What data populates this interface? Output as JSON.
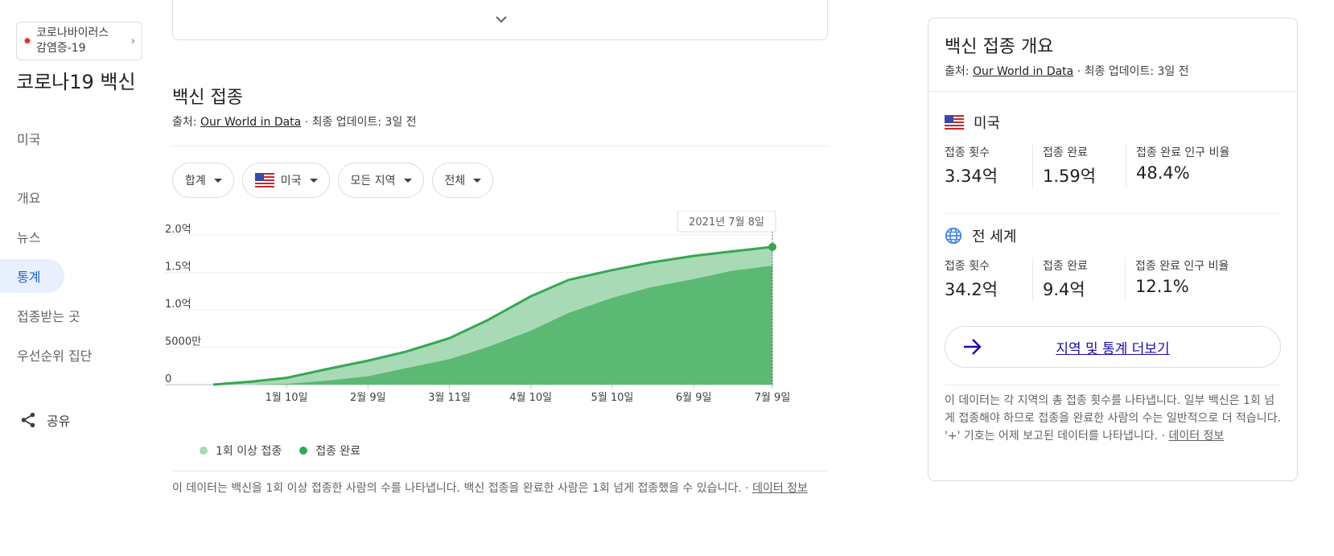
{
  "topic_chip": {
    "label_line1": "코로나바이러스",
    "label_line2": "감염증-19"
  },
  "page": {
    "title": "코로나19 백신",
    "region": "미국"
  },
  "nav": {
    "items": [
      {
        "label": "개요"
      },
      {
        "label": "뉴스"
      },
      {
        "label": "통계"
      },
      {
        "label": "접종받는 곳"
      },
      {
        "label": "우선순위 집단"
      }
    ],
    "active": "통계"
  },
  "share_label": "공유",
  "section": {
    "title": "백신 접종",
    "source_prefix": "출처: ",
    "source_link": "Our World in Data",
    "source_suffix": " · 최종 업데이트: 3일 전",
    "filters": [
      {
        "label": "합계"
      },
      {
        "label": "미국",
        "flag": "us-flag"
      },
      {
        "label": "모든 지역"
      },
      {
        "label": "전체"
      }
    ],
    "footnote": "이 데이터는 백신을 1회 이상 접종한 사람의 수를 나타냅니다. 백신 접종을 완료한 사람은 1회 넘게 접종했을 수 있습니다. · ",
    "footnote_link": "데이터 정보"
  },
  "chart_data": {
    "type": "area",
    "tooltip": "2021년 7월 8일",
    "x_ticks": [
      "1월 10일",
      "2월 9일",
      "3월 11일",
      "4월 10일",
      "5월 10일",
      "6월 9일",
      "7월 9일"
    ],
    "y_ticks": [
      "0",
      "5000만",
      "1.0억",
      "1.5억",
      "2.0억"
    ],
    "ylim": [
      0,
      200000000
    ],
    "x_start": "2020-12-14",
    "x_end": "2021-07-08",
    "x": [
      "2020-12-14",
      "2020-12-28",
      "2021-01-10",
      "2021-01-24",
      "2021-02-09",
      "2021-02-23",
      "2021-03-11",
      "2021-03-25",
      "2021-04-10",
      "2021-04-24",
      "2021-05-10",
      "2021-05-24",
      "2021-06-09",
      "2021-06-23",
      "2021-07-08"
    ],
    "series": [
      {
        "name": "1회 이상 접종",
        "color": "#a8dab5",
        "values": [
          0,
          4000000,
          9000000,
          20000000,
          32000000,
          44000000,
          62000000,
          86000000,
          118000000,
          140000000,
          153000000,
          163000000,
          172000000,
          178000000,
          184000000
        ]
      },
      {
        "name": "접종 완료",
        "color": "#5bb974",
        "values": [
          0,
          0,
          1000000,
          5000000,
          11000000,
          22000000,
          34000000,
          50000000,
          72000000,
          96000000,
          116000000,
          130000000,
          141000000,
          152000000,
          159000000
        ]
      }
    ],
    "line_color": "#34a853"
  },
  "side": {
    "title": "백신 접종 개요",
    "source_prefix": "출처: ",
    "source_link": "Our World in Data",
    "source_suffix": " · 최종 업데이트: 3일 전",
    "us": {
      "name": "미국",
      "stats": [
        {
          "label": "접종 횟수",
          "value": "3.34억"
        },
        {
          "label": "접종 완료",
          "value": "1.59억"
        },
        {
          "label": "접종 완료 인구 비율",
          "value": "48.4%"
        }
      ]
    },
    "world": {
      "name": "전 세계",
      "stats": [
        {
          "label": "접종 횟수",
          "value": "34.2억"
        },
        {
          "label": "접종 완료",
          "value": "9.4억"
        },
        {
          "label": "접종 완료 인구 비율",
          "value": "12.1%"
        }
      ]
    },
    "more_label": "지역 및 통계 더보기",
    "note": "이 데이터는 각 지역의 총 접종 횟수를 나타냅니다. 일부 백신은 1회 넘게 접종해야 하므로 접종을 완료한 사람의 수는 일반적으로 더 적습니다. '+' 기호는 어제 보고된 데이터를 나타냅니다. · ",
    "note_link": "데이터 정보"
  }
}
